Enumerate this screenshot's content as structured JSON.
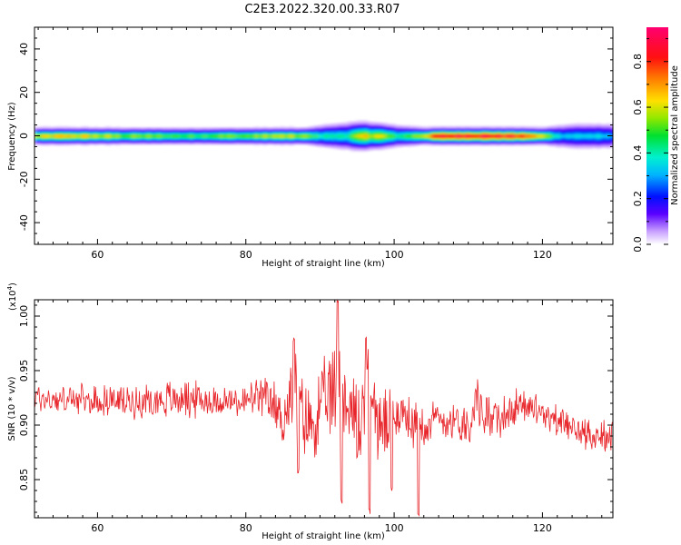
{
  "title": "C2E3.2022.320.00.33.R07",
  "chart_data": [
    {
      "type": "heatmap",
      "xlabel": "Height of straight line (km)",
      "ylabel": "Frequency (Hz)",
      "xlim": [
        51.5,
        129.5
      ],
      "ylim": [
        -50,
        50
      ],
      "x_ticks": [
        60,
        80,
        100,
        120
      ],
      "y_ticks": [
        -40,
        -20,
        0,
        20,
        40
      ],
      "colorbar": {
        "label": "Normalized spectral amplitude",
        "range": [
          0,
          0.95
        ],
        "ticks": [
          "0.0",
          "0.2",
          "0.4",
          "0.6",
          "0.8"
        ],
        "tick_values": [
          0,
          0.2,
          0.4,
          0.6,
          0.8
        ]
      },
      "description_points": {
        "x": [
          52,
          56,
          60,
          64,
          68,
          72,
          76,
          80,
          84,
          88,
          90,
          92,
          94,
          96,
          98,
          100,
          102,
          104,
          106,
          108,
          110,
          112,
          114,
          116,
          118,
          120,
          122,
          124,
          126,
          128,
          129
        ],
        "peak_amplitude": [
          0.55,
          0.62,
          0.55,
          0.5,
          0.48,
          0.45,
          0.5,
          0.48,
          0.55,
          0.5,
          0.4,
          0.38,
          0.45,
          0.62,
          0.58,
          0.4,
          0.48,
          0.62,
          0.8,
          0.85,
          0.9,
          0.85,
          0.82,
          0.8,
          0.72,
          0.55,
          0.35,
          0.32,
          0.34,
          0.3,
          0.3
        ],
        "half_width_hz": [
          3,
          3,
          3,
          3,
          3,
          3,
          3,
          3,
          3,
          3,
          4,
          4.5,
          5,
          5,
          4.5,
          4,
          3.5,
          3,
          3,
          3,
          3,
          3,
          3,
          3,
          3,
          3,
          4,
          4.5,
          4.5,
          4.5,
          4.5
        ]
      }
    },
    {
      "type": "line",
      "xlabel": "Height of straight line (km)",
      "ylabel": "SNR (10 * v/v)",
      "y_multiplier": "(x10",
      "y_multiplier_exp": "4",
      "y_multiplier_close": ")",
      "xlim": [
        51.5,
        129.5
      ],
      "ylim": [
        0.815,
        1.015
      ],
      "x_ticks": [
        60,
        80,
        100,
        120
      ],
      "y_ticks": [
        "0.85",
        "0.90",
        "0.95",
        "1.00"
      ],
      "y_tick_values": [
        0.85,
        0.9,
        0.95,
        1.0
      ],
      "series": [
        {
          "color": "#e8252a",
          "x": [
            52,
            54,
            56,
            58,
            60,
            62,
            64,
            66,
            68,
            70,
            72,
            74,
            76,
            78,
            80,
            82,
            84,
            85,
            86,
            86.5,
            87,
            88,
            89,
            90,
            91,
            92,
            92.5,
            93,
            94,
            95,
            96,
            96.5,
            97,
            98,
            99,
            100,
            101,
            102,
            103,
            104,
            106,
            108,
            110,
            111,
            112,
            114,
            116,
            118,
            120,
            122,
            124,
            126,
            128,
            129
          ],
          "mean": [
            0.925,
            0.923,
            0.924,
            0.922,
            0.922,
            0.923,
            0.921,
            0.922,
            0.923,
            0.924,
            0.925,
            0.923,
            0.922,
            0.921,
            0.922,
            0.925,
            0.918,
            0.905,
            0.925,
            0.945,
            0.92,
            0.905,
            0.9,
            0.915,
            0.925,
            0.93,
            0.95,
            0.93,
            0.915,
            0.9,
            0.925,
            0.94,
            0.925,
            0.9,
            0.895,
            0.915,
            0.91,
            0.905,
            0.9,
            0.905,
            0.905,
            0.905,
            0.9,
            0.925,
            0.91,
            0.905,
            0.915,
            0.92,
            0.91,
            0.905,
            0.895,
            0.893,
            0.89,
            0.89
          ],
          "noise": [
            0.012,
            0.012,
            0.012,
            0.012,
            0.012,
            0.012,
            0.012,
            0.013,
            0.013,
            0.014,
            0.015,
            0.013,
            0.012,
            0.012,
            0.013,
            0.015,
            0.018,
            0.022,
            0.03,
            0.03,
            0.025,
            0.03,
            0.028,
            0.03,
            0.032,
            0.035,
            0.04,
            0.035,
            0.032,
            0.04,
            0.03,
            0.03,
            0.03,
            0.035,
            0.03,
            0.018,
            0.018,
            0.018,
            0.02,
            0.018,
            0.016,
            0.015,
            0.015,
            0.02,
            0.016,
            0.014,
            0.014,
            0.013,
            0.012,
            0.012,
            0.012,
            0.012,
            0.012,
            0.012
          ]
        }
      ]
    }
  ]
}
